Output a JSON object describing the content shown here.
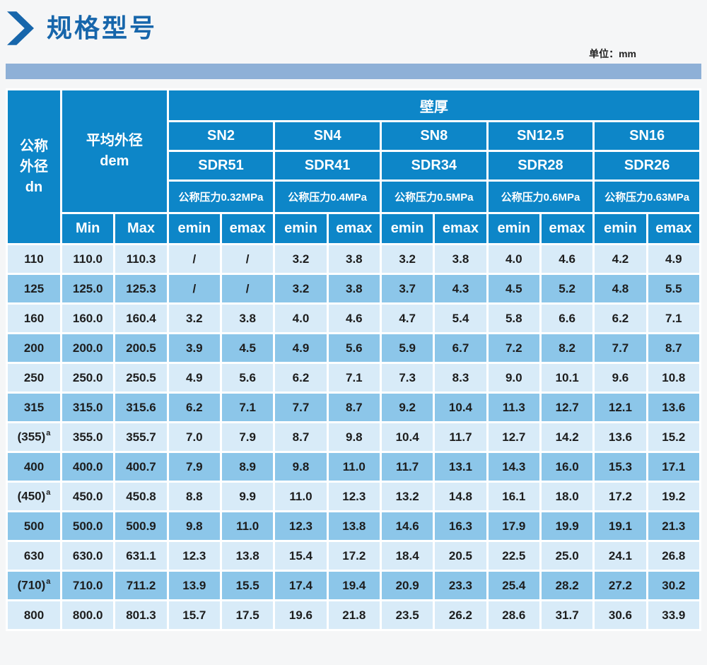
{
  "page": {
    "title": "规格型号",
    "unit_label": "单位：mm"
  },
  "colors": {
    "title_blue": "#1766ab",
    "header_blue": "#0d86c8",
    "row_light": "#d8ebf8",
    "row_dark": "#8cc6e9",
    "bar_blue": "#8eb0d7"
  },
  "table": {
    "header": {
      "dn_label": "公称\n外径\ndn",
      "dem_label": "平均外径\ndem",
      "wall_label": "壁厚",
      "sn": [
        "SN2",
        "SN4",
        "SN8",
        "SN12.5",
        "SN16"
      ],
      "sdr": [
        "SDR51",
        "SDR41",
        "SDR34",
        "SDR28",
        "SDR26"
      ],
      "pressure": [
        "公称压力0.32MPa",
        "公称压力0.4MPa",
        "公称压力0.5MPa",
        "公称压力0.6MPa",
        "公称压力0.63MPa"
      ],
      "min_label": "Min",
      "max_label": "Max",
      "emin_label": "emin",
      "emax_label": "emax"
    },
    "rows": [
      {
        "dn": "110",
        "sup": "",
        "values": [
          "110.0",
          "110.3",
          "/",
          "/",
          "3.2",
          "3.8",
          "3.2",
          "3.8",
          "4.0",
          "4.6",
          "4.2",
          "4.9"
        ]
      },
      {
        "dn": "125",
        "sup": "",
        "values": [
          "125.0",
          "125.3",
          "/",
          "/",
          "3.2",
          "3.8",
          "3.7",
          "4.3",
          "4.5",
          "5.2",
          "4.8",
          "5.5"
        ]
      },
      {
        "dn": "160",
        "sup": "",
        "values": [
          "160.0",
          "160.4",
          "3.2",
          "3.8",
          "4.0",
          "4.6",
          "4.7",
          "5.4",
          "5.8",
          "6.6",
          "6.2",
          "7.1"
        ]
      },
      {
        "dn": "200",
        "sup": "",
        "values": [
          "200.0",
          "200.5",
          "3.9",
          "4.5",
          "4.9",
          "5.6",
          "5.9",
          "6.7",
          "7.2",
          "8.2",
          "7.7",
          "8.7"
        ]
      },
      {
        "dn": "250",
        "sup": "",
        "values": [
          "250.0",
          "250.5",
          "4.9",
          "5.6",
          "6.2",
          "7.1",
          "7.3",
          "8.3",
          "9.0",
          "10.1",
          "9.6",
          "10.8"
        ]
      },
      {
        "dn": "315",
        "sup": "",
        "values": [
          "315.0",
          "315.6",
          "6.2",
          "7.1",
          "7.7",
          "8.7",
          "9.2",
          "10.4",
          "11.3",
          "12.7",
          "12.1",
          "13.6"
        ]
      },
      {
        "dn": "(355)",
        "sup": "a",
        "values": [
          "355.0",
          "355.7",
          "7.0",
          "7.9",
          "8.7",
          "9.8",
          "10.4",
          "11.7",
          "12.7",
          "14.2",
          "13.6",
          "15.2"
        ]
      },
      {
        "dn": "400",
        "sup": "",
        "values": [
          "400.0",
          "400.7",
          "7.9",
          "8.9",
          "9.8",
          "11.0",
          "11.7",
          "13.1",
          "14.3",
          "16.0",
          "15.3",
          "17.1"
        ]
      },
      {
        "dn": "(450)",
        "sup": "a",
        "values": [
          "450.0",
          "450.8",
          "8.8",
          "9.9",
          "11.0",
          "12.3",
          "13.2",
          "14.8",
          "16.1",
          "18.0",
          "17.2",
          "19.2"
        ]
      },
      {
        "dn": "500",
        "sup": "",
        "values": [
          "500.0",
          "500.9",
          "9.8",
          "11.0",
          "12.3",
          "13.8",
          "14.6",
          "16.3",
          "17.9",
          "19.9",
          "19.1",
          "21.3"
        ]
      },
      {
        "dn": "630",
        "sup": "",
        "values": [
          "630.0",
          "631.1",
          "12.3",
          "13.8",
          "15.4",
          "17.2",
          "18.4",
          "20.5",
          "22.5",
          "25.0",
          "24.1",
          "26.8"
        ]
      },
      {
        "dn": "(710)",
        "sup": "a",
        "values": [
          "710.0",
          "711.2",
          "13.9",
          "15.5",
          "17.4",
          "19.4",
          "20.9",
          "23.3",
          "25.4",
          "28.2",
          "27.2",
          "30.2"
        ]
      },
      {
        "dn": "800",
        "sup": "",
        "values": [
          "800.0",
          "801.3",
          "15.7",
          "17.5",
          "19.6",
          "21.8",
          "23.5",
          "26.2",
          "28.6",
          "31.7",
          "30.6",
          "33.9"
        ]
      }
    ]
  }
}
